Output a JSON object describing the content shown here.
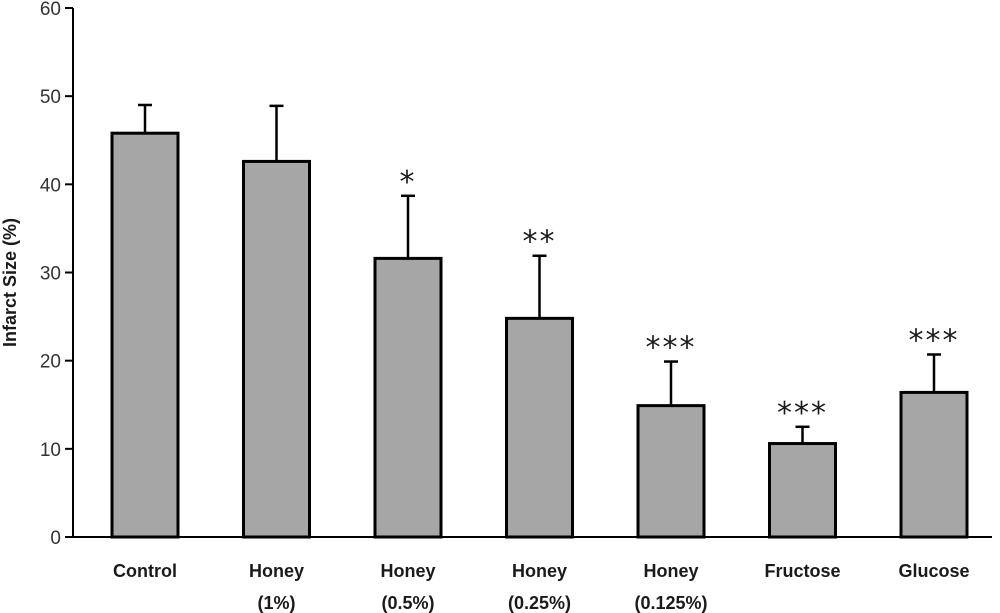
{
  "chart_data": {
    "type": "bar",
    "title": "",
    "xlabel": "",
    "ylabel": "Infarct Size (%)",
    "ylim": [
      0,
      60
    ],
    "yticks": [
      0,
      10,
      20,
      30,
      40,
      50,
      60
    ],
    "grid": false,
    "legend": "none",
    "bar_color": "#a6a6a6",
    "edge_color": "#000000",
    "categories": [
      {
        "line1": "Control",
        "line2": ""
      },
      {
        "line1": "Honey",
        "line2": "(1%)"
      },
      {
        "line1": "Honey",
        "line2": "(0.5%)"
      },
      {
        "line1": "Honey",
        "line2": "(0.25%)"
      },
      {
        "line1": "Honey",
        "line2": "(0.125%)"
      },
      {
        "line1": "Fructose",
        "line2": ""
      },
      {
        "line1": "Glucose",
        "line2": ""
      }
    ],
    "values": [
      45.8,
      42.6,
      31.6,
      24.8,
      14.9,
      10.6,
      16.4
    ],
    "error_upper": [
      49.0,
      48.9,
      38.7,
      31.9,
      19.9,
      12.5,
      20.7
    ],
    "significance": [
      "",
      "",
      "*",
      "**",
      "***",
      "***",
      "***"
    ]
  }
}
